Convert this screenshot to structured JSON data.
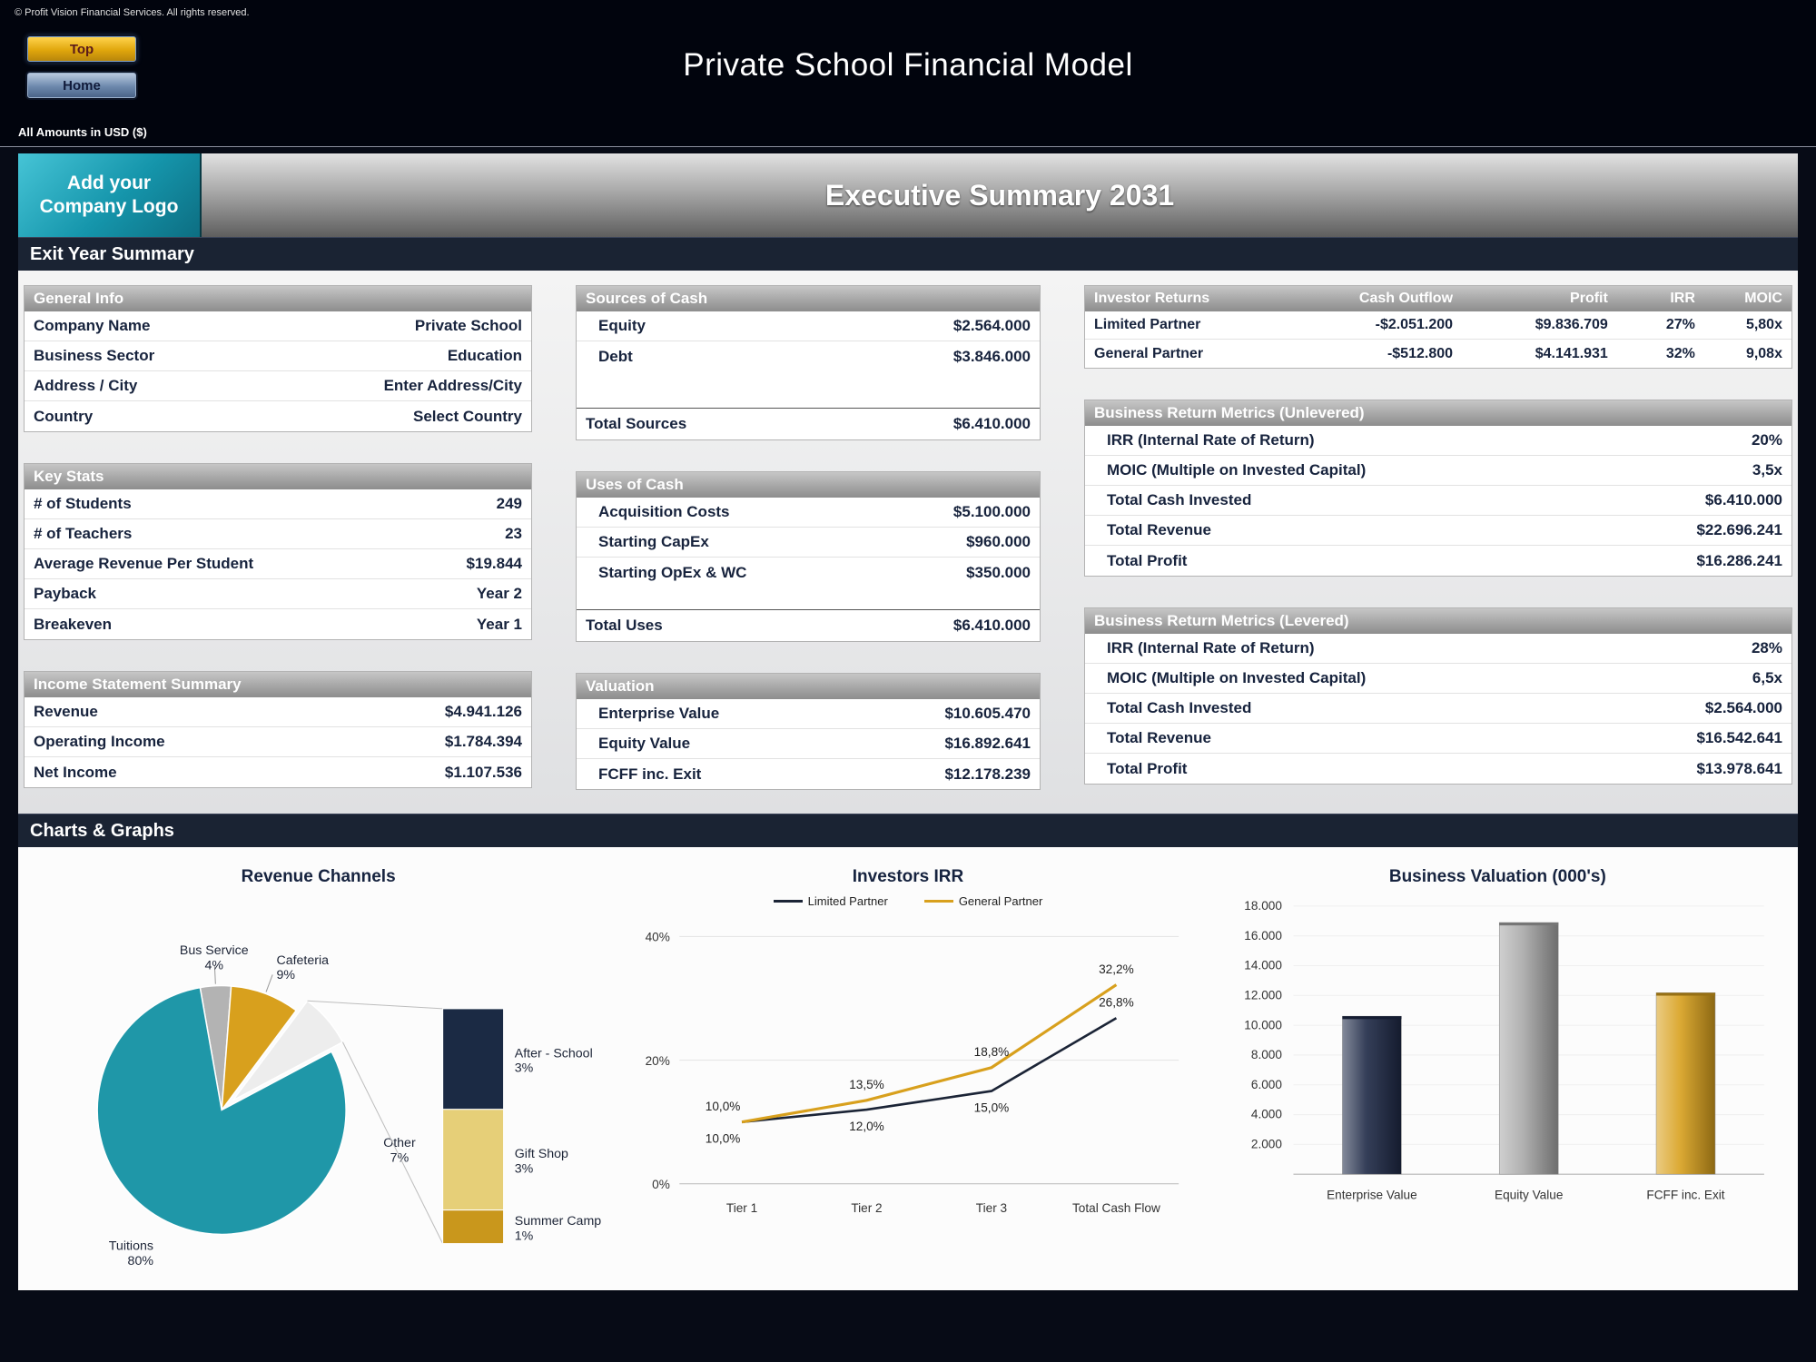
{
  "page": {
    "copyright": "© Profit Vision Financial Services. All rights reserved.",
    "title": "Private School Financial Model",
    "amounts_note": "All Amounts in  USD ($)",
    "logo_text": "Add your Company Logo",
    "banner_title": "Executive Summary 2031",
    "nav": {
      "top": "Top",
      "home": "Home"
    },
    "section_exit": "Exit Year Summary",
    "section_charts": "Charts & Graphs"
  },
  "tables": {
    "general_info": {
      "title": "General Info",
      "rows": [
        [
          "Company Name",
          "Private School"
        ],
        [
          "Business Sector",
          "Education"
        ],
        [
          "Address / City",
          "Enter Address/City"
        ],
        [
          "Country",
          "Select Country"
        ]
      ]
    },
    "key_stats": {
      "title": "Key Stats",
      "rows": [
        [
          "# of Students",
          "249"
        ],
        [
          "# of Teachers",
          "23"
        ],
        [
          "Average Revenue Per Student",
          "$19.844"
        ],
        [
          "Payback",
          "Year 2"
        ],
        [
          "Breakeven",
          "Year 1"
        ]
      ]
    },
    "income_summary": {
      "title": "Income Statement Summary",
      "rows": [
        [
          "Revenue",
          "$4.941.126"
        ],
        [
          "Operating Income",
          "$1.784.394"
        ],
        [
          "Net Income",
          "$1.107.536"
        ]
      ]
    },
    "sources_of_cash": {
      "title": "Sources of Cash",
      "rows": [
        [
          "Equity",
          "$2.564.000"
        ],
        [
          "Debt",
          "$3.846.000"
        ]
      ],
      "total": [
        "Total Sources",
        "$6.410.000"
      ]
    },
    "uses_of_cash": {
      "title": "Uses of Cash",
      "rows": [
        [
          "Acquisition Costs",
          "$5.100.000"
        ],
        [
          "Starting CapEx",
          "$960.000"
        ],
        [
          "Starting OpEx & WC",
          "$350.000"
        ]
      ],
      "total": [
        "Total Uses",
        "$6.410.000"
      ]
    },
    "valuation": {
      "title": "Valuation",
      "rows": [
        [
          "Enterprise Value",
          "$10.605.470"
        ],
        [
          "Equity Value",
          "$16.892.641"
        ],
        [
          "FCFF inc. Exit",
          "$12.178.239"
        ]
      ]
    },
    "investor_returns": {
      "headers": [
        "Investor Returns",
        "Cash Outflow",
        "Profit",
        "IRR",
        "MOIC"
      ],
      "rows": [
        [
          "Limited Partner",
          "-$2.051.200",
          "$9.836.709",
          "27%",
          "5,80x"
        ],
        [
          "General Partner",
          "-$512.800",
          "$4.141.931",
          "32%",
          "9,08x"
        ]
      ]
    },
    "unlevered": {
      "title": "Business Return Metrics (Unlevered)",
      "rows": [
        [
          "IRR (Internal Rate of Return)",
          "20%"
        ],
        [
          "MOIC (Multiple on Invested Capital)",
          "3,5x"
        ],
        [
          "Total Cash Invested",
          "$6.410.000"
        ],
        [
          "Total Revenue",
          "$22.696.241"
        ],
        [
          "Total Profit",
          "$16.286.241"
        ]
      ]
    },
    "levered": {
      "title": "Business Return Metrics (Levered)",
      "rows": [
        [
          "IRR (Internal Rate of Return)",
          "28%"
        ],
        [
          "MOIC (Multiple on Invested Capital)",
          "6,5x"
        ],
        [
          "Total Cash Invested",
          "$2.564.000"
        ],
        [
          "Total Revenue",
          "$16.542.641"
        ],
        [
          "Total Profit",
          "$13.978.641"
        ]
      ]
    }
  },
  "chart_data": [
    {
      "type": "pie",
      "title": "Revenue Channels",
      "slices": [
        {
          "label": "Bus Service",
          "value": 4,
          "color": "#b3b3b3"
        },
        {
          "label": "Cafeteria",
          "value": 9,
          "color": "#d8a01d"
        },
        {
          "label": "Other",
          "value": 7,
          "color": "#ededed",
          "exploded": true
        },
        {
          "label": "Tuitions",
          "value": 80,
          "color": "#1f97a8"
        }
      ],
      "breakdown": {
        "slices": [
          {
            "label": "After - School",
            "value": 3,
            "color": "#1b2a44"
          },
          {
            "label": "Gift Shop",
            "value": 3,
            "color": "#e6cf78"
          },
          {
            "label": "Summer Camp",
            "value": 1,
            "color": "#c9971c"
          }
        ]
      }
    },
    {
      "type": "line",
      "title": "Investors IRR",
      "categories": [
        "Tier 1",
        "Tier 2",
        "Tier 3",
        "Total Cash Flow"
      ],
      "series": [
        {
          "name": "Limited Partner",
          "color": "#1b2436",
          "values": [
            10.0,
            12.0,
            15.0,
            26.8
          ],
          "point_labels": [
            "10,0%",
            "12,0%",
            "15,0%",
            "26,8%"
          ]
        },
        {
          "name": "General Partner",
          "color": "#d8a01d",
          "values": [
            10.0,
            13.5,
            18.8,
            32.2
          ],
          "point_labels": [
            "10,0%",
            "13,5%",
            "18,8%",
            "32,2%"
          ]
        }
      ],
      "ylim": [
        0,
        40
      ],
      "yticks": [
        {
          "v": 0,
          "label": "0%"
        },
        {
          "v": 20,
          "label": "20%"
        },
        {
          "v": 40,
          "label": "40%"
        }
      ]
    },
    {
      "type": "bar",
      "title": "Business Valuation (000's)",
      "categories": [
        "Enterprise Value",
        "Equity Value",
        "FCFF inc. Exit"
      ],
      "values": [
        10605,
        16892,
        12178
      ],
      "colors": [
        "#1e2a47",
        "#a8a8a8",
        "#d8a01d"
      ],
      "ylim": [
        0,
        18000
      ],
      "yticks": [
        {
          "v": 2000,
          "label": "2.000"
        },
        {
          "v": 4000,
          "label": "4.000"
        },
        {
          "v": 6000,
          "label": "6.000"
        },
        {
          "v": 8000,
          "label": "8.000"
        },
        {
          "v": 10000,
          "label": "10.000"
        },
        {
          "v": 12000,
          "label": "12.000"
        },
        {
          "v": 14000,
          "label": "14.000"
        },
        {
          "v": 16000,
          "label": "16.000"
        },
        {
          "v": 18000,
          "label": "18.000"
        }
      ]
    }
  ]
}
